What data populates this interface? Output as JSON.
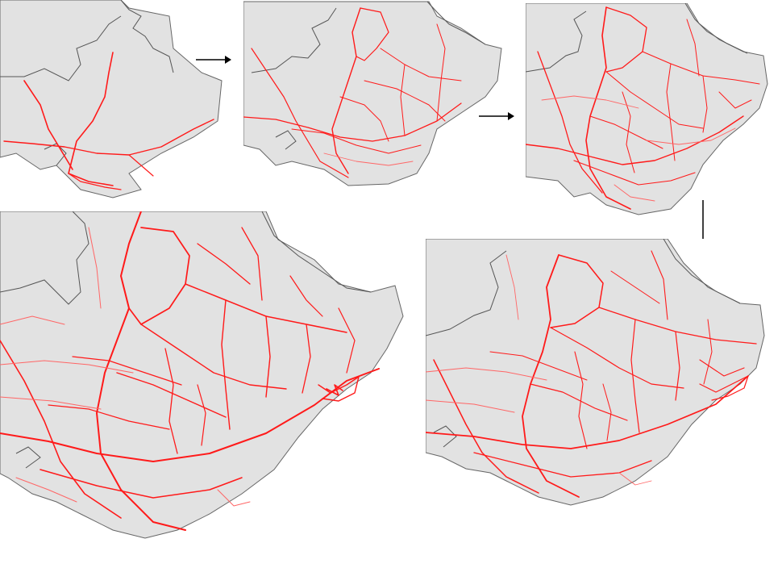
{
  "figure": {
    "panels": [
      {
        "id": "stage-1",
        "network_density": "sparse"
      },
      {
        "id": "stage-2",
        "network_density": "low"
      },
      {
        "id": "stage-3",
        "network_density": "medium"
      },
      {
        "id": "stage-4",
        "network_density": "high"
      },
      {
        "id": "stage-5",
        "network_density": "very-high"
      }
    ],
    "sequence_arrows": [
      "right",
      "right",
      "down",
      "left"
    ],
    "colors": {
      "road": "#ff1a1a",
      "road_minor": "#ff6666",
      "land": "#e2e2e2",
      "sea": "#ffffff",
      "border": "#555555",
      "arrow": "#000000"
    }
  }
}
